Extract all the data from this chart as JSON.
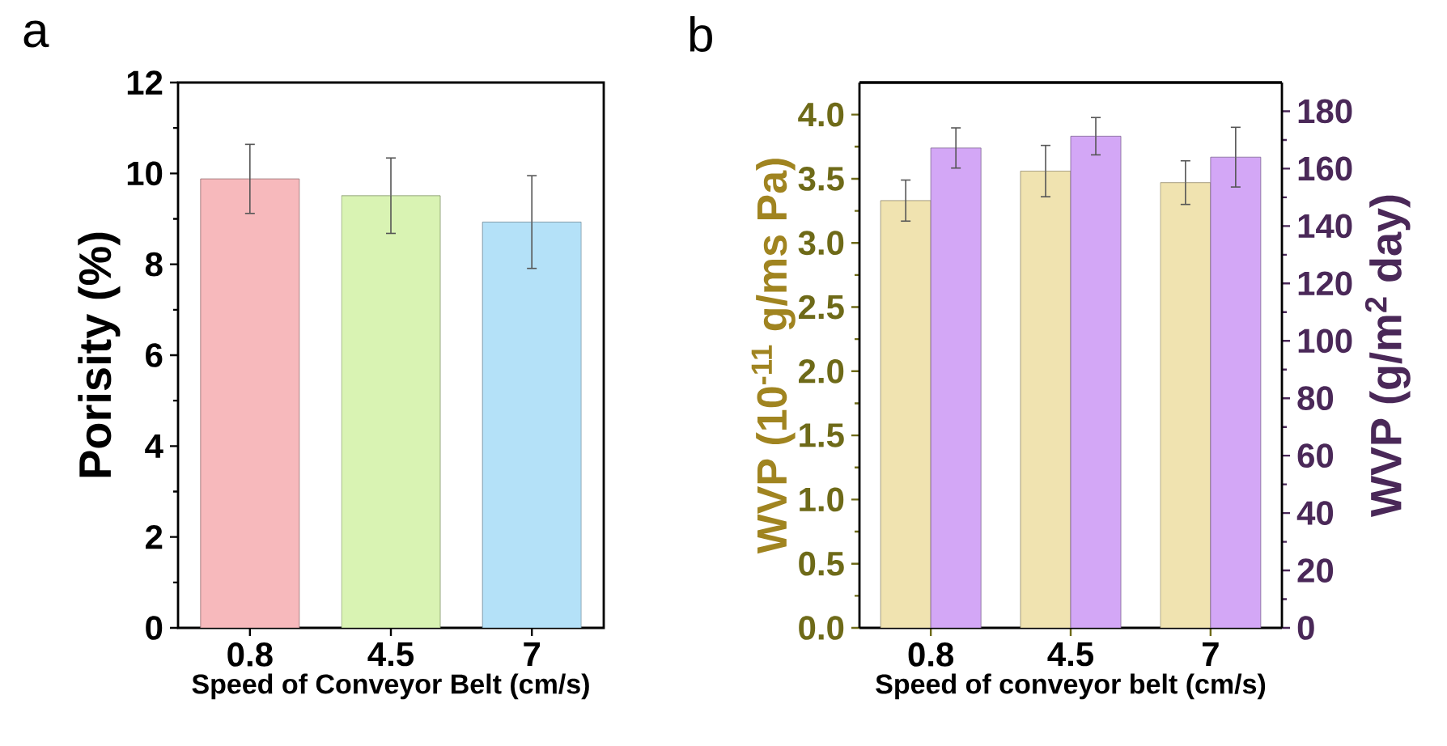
{
  "chart_data": [
    {
      "type": "bar",
      "title": "a",
      "xlabel": "Speed of Conveyor Belt (cm/s)",
      "ylabel": "Porisity (%)",
      "categories": [
        "0.8",
        "4.5",
        "7"
      ],
      "values": [
        9.88,
        9.51,
        8.93
      ],
      "errors": [
        0.76,
        0.83,
        1.02
      ],
      "colors": [
        "#f7b9bc",
        "#d9f3b3",
        "#b4e1f8"
      ],
      "ylim": [
        0,
        12
      ],
      "yticks": [
        0,
        2,
        4,
        6,
        8,
        10,
        12
      ]
    },
    {
      "type": "bar",
      "title": "b",
      "xlabel": "Speed of conveyor belt (cm/s)",
      "ylabel": "WVP (10$^{-11}$ g/ms Pa)",
      "y2label": "WVP (g/m$^{2}$ day)",
      "categories": [
        "0.8",
        "4.5",
        "7"
      ],
      "series": [
        {
          "color": "#f0e3b0",
          "values": [
            3.33,
            3.56,
            3.47
          ],
          "errors": [
            0.16,
            0.2,
            0.17
          ]
        },
        {
          "color": "#d3a7f6",
          "axis": "y2",
          "values": [
            167.2,
            171.3,
            164.0
          ],
          "errors": [
            7,
            6.5,
            10.4
          ]
        }
      ],
      "ylim": [
        0,
        4.25
      ],
      "yticks": [
        {
          "value": 0,
          "label": "0.0"
        },
        {
          "value": 0.5,
          "label": "0.5"
        },
        {
          "value": 1,
          "label": "1.0"
        },
        {
          "value": 1.5,
          "label": "1.5"
        },
        {
          "value": 2,
          "label": "2.0"
        },
        {
          "value": 2.5,
          "label": "2.5"
        },
        {
          "value": 3,
          "label": "3.0"
        },
        {
          "value": 3.5,
          "label": "3.5"
        },
        {
          "value": 4,
          "label": "4.0"
        }
      ],
      "y2lim": [
        0,
        190
      ],
      "y2ticks": [
        0,
        20,
        40,
        60,
        80,
        100,
        120,
        140,
        160,
        180
      ]
    }
  ]
}
